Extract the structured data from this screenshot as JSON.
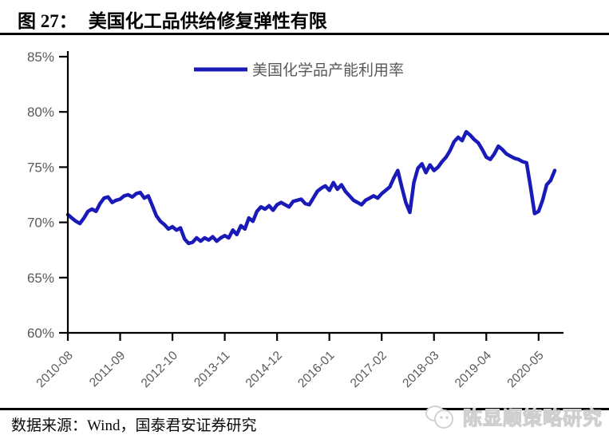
{
  "figure": {
    "label": "图 27：",
    "title": "美国化工品供给修复弹性有限"
  },
  "chart_data": {
    "type": "line",
    "title": "",
    "legend_position": "top-center",
    "grid": false,
    "line_color": "#1a1ab8",
    "axis_color": "#000000",
    "tick_label_color": "#595959",
    "ylim": [
      60,
      85
    ],
    "yticks": [
      60,
      65,
      70,
      75,
      80,
      85
    ],
    "ytick_labels": [
      "60%",
      "65%",
      "70%",
      "75%",
      "80%",
      "85%"
    ],
    "xtick_labels": [
      "2010-08",
      "2011-09",
      "2012-10",
      "2013-11",
      "2014-12",
      "2016-01",
      "2017-02",
      "2018-03",
      "2019-04",
      "2020-05"
    ],
    "xtick_month_step": 13,
    "x": [
      "2010-08",
      "2010-09",
      "2010-10",
      "2010-11",
      "2010-12",
      "2011-01",
      "2011-02",
      "2011-03",
      "2011-04",
      "2011-05",
      "2011-06",
      "2011-07",
      "2011-08",
      "2011-09",
      "2011-10",
      "2011-11",
      "2011-12",
      "2012-01",
      "2012-02",
      "2012-03",
      "2012-04",
      "2012-05",
      "2012-06",
      "2012-07",
      "2012-08",
      "2012-09",
      "2012-10",
      "2012-11",
      "2012-12",
      "2013-01",
      "2013-02",
      "2013-03",
      "2013-04",
      "2013-05",
      "2013-06",
      "2013-07",
      "2013-08",
      "2013-09",
      "2013-10",
      "2013-11",
      "2013-12",
      "2014-01",
      "2014-02",
      "2014-03",
      "2014-04",
      "2014-05",
      "2014-06",
      "2014-07",
      "2014-08",
      "2014-09",
      "2014-10",
      "2014-11",
      "2014-12",
      "2015-01",
      "2015-02",
      "2015-03",
      "2015-04",
      "2015-05",
      "2015-06",
      "2015-07",
      "2015-08",
      "2015-09",
      "2015-10",
      "2015-11",
      "2015-12",
      "2016-01",
      "2016-02",
      "2016-03",
      "2016-04",
      "2016-05",
      "2016-06",
      "2016-07",
      "2016-08",
      "2016-09",
      "2016-10",
      "2016-11",
      "2016-12",
      "2017-01",
      "2017-02",
      "2017-03",
      "2017-04",
      "2017-05",
      "2017-06",
      "2017-07",
      "2017-08",
      "2017-09",
      "2017-10",
      "2017-11",
      "2017-12",
      "2018-01",
      "2018-02",
      "2018-03",
      "2018-04",
      "2018-05",
      "2018-06",
      "2018-07",
      "2018-08",
      "2018-09",
      "2018-10",
      "2018-11",
      "2018-12",
      "2019-01",
      "2019-02",
      "2019-03",
      "2019-04",
      "2019-05",
      "2019-06",
      "2019-07",
      "2019-08",
      "2019-09",
      "2019-10",
      "2019-11",
      "2019-12",
      "2020-01",
      "2020-02",
      "2020-03",
      "2020-04",
      "2020-05",
      "2020-06",
      "2020-07",
      "2020-08",
      "2020-09"
    ],
    "series": [
      {
        "name": "美国化学品产能利用率",
        "values": [
          70.7,
          70.4,
          70.1,
          69.9,
          70.4,
          71.0,
          71.2,
          71.0,
          71.7,
          72.2,
          72.3,
          71.8,
          72.0,
          72.1,
          72.4,
          72.5,
          72.3,
          72.6,
          72.7,
          72.2,
          72.4,
          71.5,
          70.6,
          70.1,
          69.8,
          69.4,
          69.6,
          69.3,
          69.5,
          68.5,
          68.1,
          68.2,
          68.6,
          68.3,
          68.6,
          68.4,
          68.7,
          68.3,
          68.6,
          68.8,
          68.6,
          69.3,
          68.9,
          69.7,
          69.4,
          70.4,
          70.1,
          71.0,
          71.4,
          71.2,
          71.5,
          71.1,
          71.6,
          71.8,
          71.6,
          71.4,
          71.9,
          72.0,
          72.1,
          71.7,
          71.6,
          72.2,
          72.8,
          73.1,
          73.3,
          72.9,
          73.6,
          73.0,
          73.4,
          72.8,
          72.4,
          72.0,
          71.8,
          71.6,
          72.0,
          72.2,
          72.4,
          72.2,
          72.6,
          72.9,
          73.2,
          74.0,
          74.7,
          73.2,
          71.8,
          70.9,
          73.6,
          74.9,
          75.3,
          74.5,
          75.2,
          74.7,
          75.0,
          75.5,
          75.9,
          76.5,
          77.3,
          77.7,
          77.4,
          78.2,
          77.9,
          77.5,
          77.2,
          76.6,
          75.9,
          75.7,
          76.2,
          76.9,
          76.6,
          76.2,
          76.0,
          75.8,
          75.7,
          75.5,
          75.4,
          73.2,
          70.8,
          71.0,
          72.0,
          73.4,
          73.8,
          74.7
        ]
      }
    ]
  },
  "footer": {
    "source": "数据来源：Wind，国泰君安证券研究"
  },
  "watermark": {
    "text": "陈显顺策略研究",
    "icon": "mascot-logo"
  }
}
